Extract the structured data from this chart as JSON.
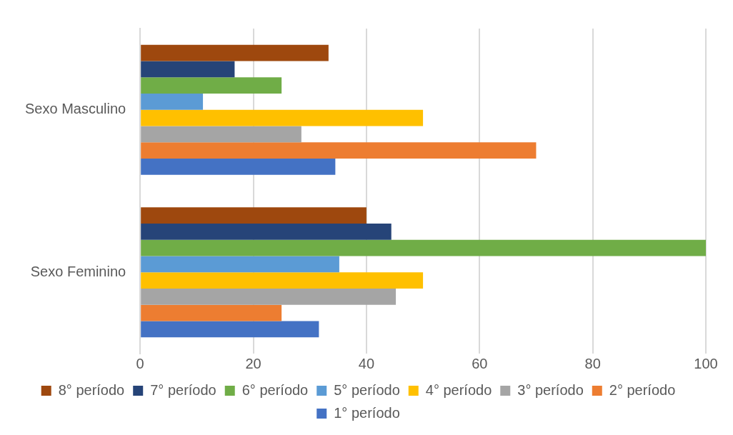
{
  "chart_data": {
    "type": "bar",
    "orientation": "horizontal",
    "categories": [
      "Sexo Masculino",
      "Sexo Feminino"
    ],
    "series": [
      {
        "name": "8° período",
        "color": "#9e480e",
        "values": [
          33.3,
          40
        ]
      },
      {
        "name": "7° período",
        "color": "#264478",
        "values": [
          16.7,
          44.4
        ]
      },
      {
        "name": "6° período",
        "color": "#70ad47",
        "values": [
          25,
          100
        ]
      },
      {
        "name": "5° período",
        "color": "#5b9bd5",
        "values": [
          11.1,
          35.2
        ]
      },
      {
        "name": "4° período",
        "color": "#ffc000",
        "values": [
          50,
          50
        ]
      },
      {
        "name": "3° período",
        "color": "#a5a5a5",
        "values": [
          28.5,
          45.2
        ]
      },
      {
        "name": "2° período",
        "color": "#ed7d31",
        "values": [
          70,
          25
        ]
      },
      {
        "name": "1° período",
        "color": "#4472c4",
        "values": [
          34.5,
          31.6
        ]
      }
    ],
    "xlim": [
      0,
      100
    ],
    "xticks": [
      0,
      20,
      40,
      60,
      80,
      100
    ],
    "grid": "x",
    "legend": "bottom"
  }
}
